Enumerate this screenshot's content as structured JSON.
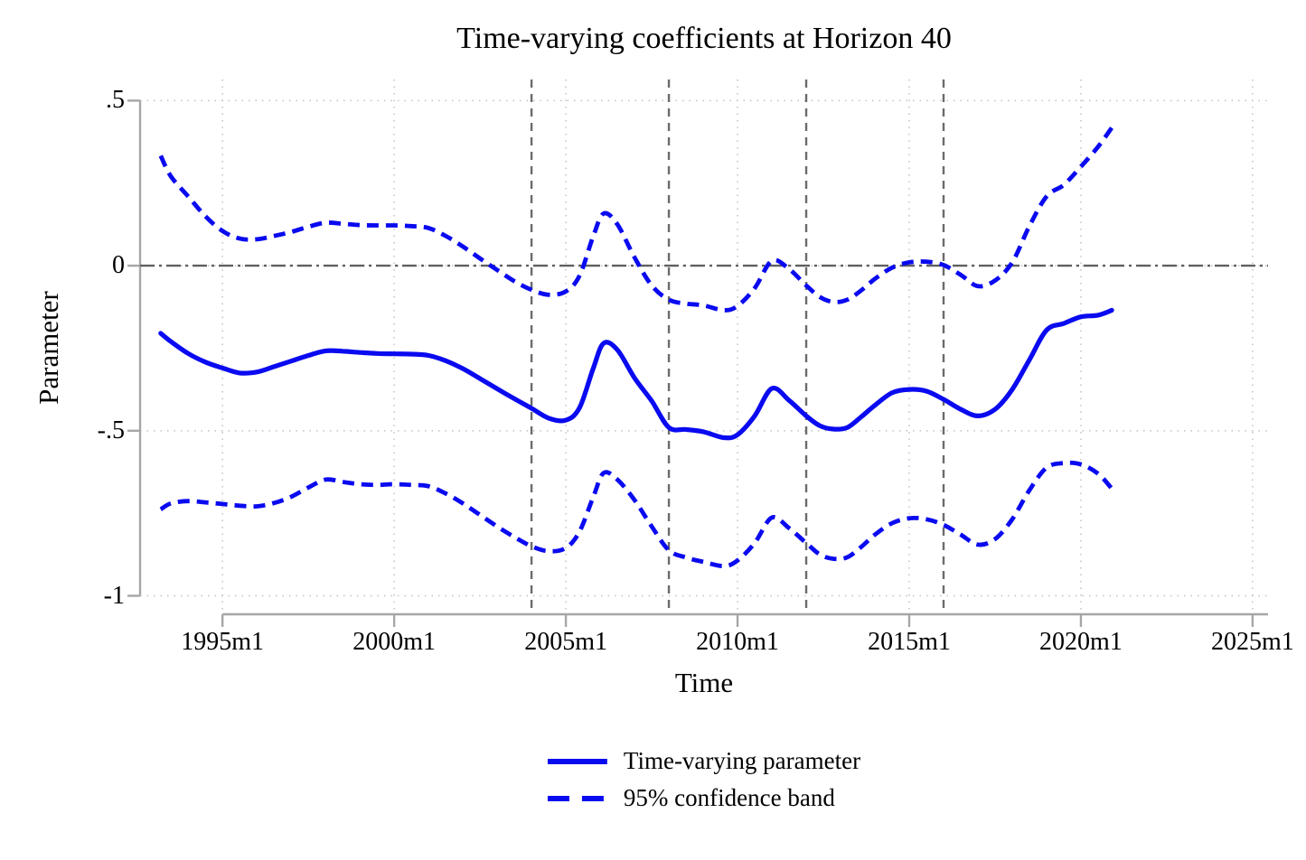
{
  "chart_data": {
    "type": "line",
    "title": "Time-varying coefficients at Horizon 40",
    "xlabel": "Time",
    "ylabel": "Parameter",
    "xlim": [
      1992.6,
      2025.45
    ],
    "ylim": [
      -1.056,
      0.564
    ],
    "grid": true,
    "x_ticks": [
      {
        "value": 1995,
        "label": "1995m1"
      },
      {
        "value": 2000,
        "label": "2000m1"
      },
      {
        "value": 2005,
        "label": "2005m1"
      },
      {
        "value": 2010,
        "label": "2010m1"
      },
      {
        "value": 2015,
        "label": "2015m1"
      },
      {
        "value": 2020,
        "label": "2020m1"
      },
      {
        "value": 2025,
        "label": "2025m1"
      }
    ],
    "y_ticks": [
      {
        "value": 0.5,
        "label": ".5"
      },
      {
        "value": 0,
        "label": "0"
      },
      {
        "value": -0.5,
        "label": "-.5"
      },
      {
        "value": -1,
        "label": "-1"
      }
    ],
    "reference_lines": {
      "horizontal": [
        0
      ],
      "vertical": [
        2004,
        2008,
        2012,
        2016
      ]
    },
    "series": [
      {
        "name": "Time-varying parameter",
        "style": "solid",
        "x": [
          1993.2,
          1993.5,
          1994,
          1994.5,
          1995,
          1995.5,
          1996,
          1996.5,
          1997,
          1997.5,
          1998,
          1998.5,
          1999,
          1999.5,
          2000,
          2000.5,
          2001,
          2001.5,
          2002,
          2002.5,
          2003,
          2003.5,
          2004,
          2004.5,
          2005,
          2005.4,
          2005.8,
          2006.1,
          2006.5,
          2007,
          2007.5,
          2008,
          2008.5,
          2009,
          2009.6,
          2010,
          2010.5,
          2011,
          2011.5,
          2012,
          2012.4,
          2012.8,
          2013.2,
          2013.6,
          2014,
          2014.5,
          2015,
          2015.5,
          2016,
          2016.5,
          2017,
          2017.5,
          2018,
          2018.5,
          2019,
          2019.5,
          2020,
          2020.5,
          2020.9
        ],
        "y": [
          -0.205,
          -0.23,
          -0.266,
          -0.292,
          -0.31,
          -0.325,
          -0.322,
          -0.306,
          -0.289,
          -0.272,
          -0.258,
          -0.259,
          -0.263,
          -0.266,
          -0.267,
          -0.268,
          -0.272,
          -0.288,
          -0.312,
          -0.342,
          -0.373,
          -0.403,
          -0.432,
          -0.462,
          -0.468,
          -0.43,
          -0.31,
          -0.235,
          -0.255,
          -0.34,
          -0.41,
          -0.49,
          -0.496,
          -0.503,
          -0.521,
          -0.512,
          -0.455,
          -0.372,
          -0.408,
          -0.455,
          -0.485,
          -0.495,
          -0.49,
          -0.458,
          -0.423,
          -0.385,
          -0.375,
          -0.38,
          -0.405,
          -0.435,
          -0.455,
          -0.435,
          -0.375,
          -0.285,
          -0.195,
          -0.175,
          -0.155,
          -0.15,
          -0.135
        ]
      },
      {
        "name": "95% confidence band upper",
        "style": "dashed",
        "x": [
          1993.2,
          1993.5,
          1994,
          1994.5,
          1995,
          1995.5,
          1996,
          1996.5,
          1997,
          1997.5,
          1998,
          1998.5,
          1999,
          1999.5,
          2000,
          2000.5,
          2001,
          2001.5,
          2002,
          2002.5,
          2003,
          2003.5,
          2004,
          2004.5,
          2005,
          2005.4,
          2005.8,
          2006.1,
          2006.5,
          2007,
          2007.5,
          2008,
          2008.5,
          2009,
          2009.6,
          2010,
          2010.5,
          2011,
          2011.5,
          2012,
          2012.4,
          2012.8,
          2013.2,
          2013.6,
          2014,
          2014.5,
          2015,
          2015.5,
          2016,
          2016.5,
          2017,
          2017.5,
          2018,
          2018.5,
          2019,
          2019.5,
          2020,
          2020.5,
          2020.9
        ],
        "y": [
          0.333,
          0.27,
          0.21,
          0.15,
          0.105,
          0.082,
          0.08,
          0.09,
          0.102,
          0.118,
          0.13,
          0.127,
          0.123,
          0.122,
          0.122,
          0.12,
          0.114,
          0.09,
          0.058,
          0.022,
          -0.013,
          -0.047,
          -0.073,
          -0.088,
          -0.078,
          -0.03,
          0.09,
          0.158,
          0.125,
          0.025,
          -0.06,
          -0.103,
          -0.115,
          -0.12,
          -0.135,
          -0.122,
          -0.068,
          0.015,
          -0.01,
          -0.06,
          -0.095,
          -0.11,
          -0.103,
          -0.075,
          -0.04,
          -0.006,
          0.01,
          0.012,
          0.002,
          -0.028,
          -0.062,
          -0.045,
          0.01,
          0.12,
          0.21,
          0.245,
          0.3,
          0.36,
          0.418
        ]
      },
      {
        "name": "95% confidence band lower",
        "style": "dashed",
        "x": [
          1993.2,
          1993.5,
          1994,
          1994.5,
          1995,
          1995.5,
          1996,
          1996.5,
          1997,
          1997.5,
          1998,
          1998.5,
          1999,
          1999.5,
          2000,
          2000.5,
          2001,
          2001.5,
          2002,
          2002.5,
          2003,
          2003.5,
          2004,
          2004.5,
          2005,
          2005.4,
          2005.8,
          2006.1,
          2006.5,
          2007,
          2007.5,
          2008,
          2008.5,
          2009,
          2009.6,
          2010,
          2010.5,
          2011,
          2011.5,
          2012,
          2012.4,
          2012.8,
          2013.2,
          2013.6,
          2014,
          2014.5,
          2015,
          2015.5,
          2016,
          2016.5,
          2017,
          2017.5,
          2018,
          2018.5,
          2019,
          2019.5,
          2020,
          2020.5,
          2020.9
        ],
        "y": [
          -0.738,
          -0.72,
          -0.713,
          -0.717,
          -0.722,
          -0.727,
          -0.729,
          -0.719,
          -0.7,
          -0.672,
          -0.648,
          -0.655,
          -0.662,
          -0.664,
          -0.662,
          -0.664,
          -0.668,
          -0.69,
          -0.72,
          -0.755,
          -0.79,
          -0.822,
          -0.85,
          -0.865,
          -0.855,
          -0.805,
          -0.7,
          -0.628,
          -0.648,
          -0.71,
          -0.79,
          -0.862,
          -0.884,
          -0.897,
          -0.91,
          -0.893,
          -0.84,
          -0.763,
          -0.795,
          -0.84,
          -0.875,
          -0.888,
          -0.883,
          -0.852,
          -0.815,
          -0.78,
          -0.765,
          -0.768,
          -0.785,
          -0.815,
          -0.845,
          -0.828,
          -0.768,
          -0.68,
          -0.612,
          -0.598,
          -0.602,
          -0.63,
          -0.675
        ]
      }
    ],
    "legend": [
      {
        "label": "Time-varying parameter",
        "style": "solid"
      },
      {
        "label": "95% confidence band",
        "style": "dashed"
      }
    ],
    "legend_position": "bottom-center",
    "colors": {
      "line": "#0a0af0",
      "zero_line": "#5f5f5f",
      "event_line": "#6b6b6b",
      "grid": "#c2c2c2",
      "axis": "#a6a6a6",
      "text": "#000000"
    }
  }
}
